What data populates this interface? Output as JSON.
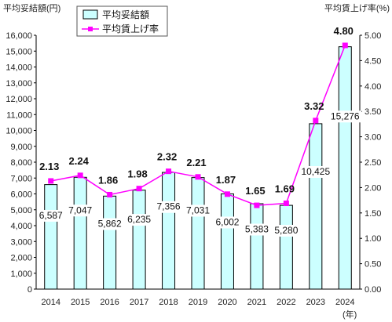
{
  "chart_data": {
    "type": "bar",
    "x_unit_label": "(年)",
    "categories": [
      "2014",
      "2015",
      "2016",
      "2017",
      "2018",
      "2019",
      "2020",
      "2021",
      "2022",
      "2023",
      "2024"
    ],
    "series": [
      {
        "name": "平均妥結額",
        "type": "bar",
        "axis": "left",
        "values": [
          6587,
          7047,
          5862,
          6235,
          7356,
          7031,
          6002,
          5383,
          5280,
          10425,
          15276
        ],
        "labels": [
          "6,587",
          "7,047",
          "5,862",
          "6,235",
          "7,356",
          "7,031",
          "6,002",
          "5,383",
          "5,280",
          "10,425",
          "15,276"
        ],
        "color": "#ccffff"
      },
      {
        "name": "平均賃上げ率",
        "type": "line",
        "axis": "right",
        "values": [
          2.13,
          2.24,
          1.86,
          1.98,
          2.32,
          2.21,
          1.87,
          1.65,
          1.69,
          3.32,
          4.8
        ],
        "labels": [
          "2.13",
          "2.24",
          "1.86",
          "1.98",
          "2.32",
          "2.21",
          "1.87",
          "1.65",
          "1.69",
          "3.32",
          "4.80"
        ],
        "color": "#ff00ff"
      }
    ],
    "y_left": {
      "title": "平均妥結額(円)",
      "range": [
        0,
        16000
      ],
      "ticks": [
        "0",
        "1,000",
        "2,000",
        "3,000",
        "4,000",
        "5,000",
        "6,000",
        "7,000",
        "8,000",
        "9,000",
        "10,000",
        "11,000",
        "12,000",
        "13,000",
        "14,000",
        "15,000",
        "16,000"
      ]
    },
    "y_right": {
      "title": "平均賃上げ率(%)",
      "range": [
        0,
        5
      ],
      "ticks": [
        "0.00",
        "0.50",
        "1.00",
        "1.50",
        "2.00",
        "2.50",
        "3.00",
        "3.50",
        "4.00",
        "4.50",
        "5.00"
      ]
    },
    "grid": false,
    "legend_position": "top-left"
  }
}
